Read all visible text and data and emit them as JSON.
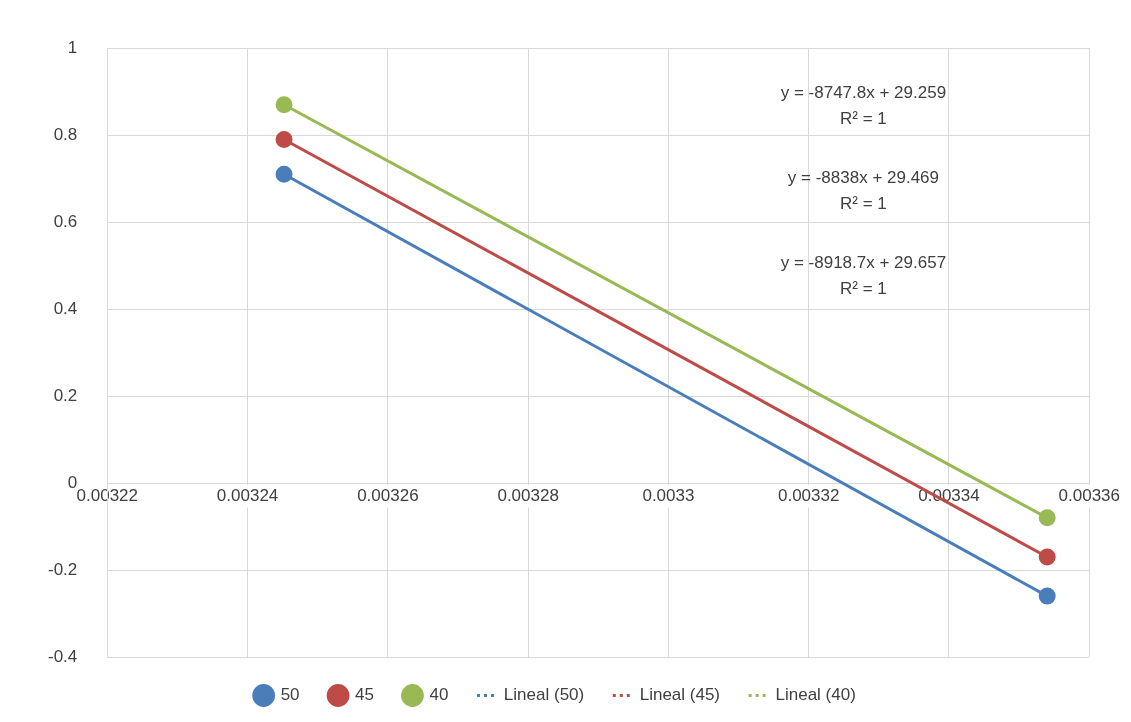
{
  "chart_data": {
    "type": "line",
    "x": [
      0.0032452,
      0.003354
    ],
    "series": [
      {
        "name": "50",
        "color": "#4a7ebb",
        "values": [
          0.71,
          -0.26
        ],
        "marker": "circle",
        "line_style": "solid"
      },
      {
        "name": "45",
        "color": "#be4b48",
        "values": [
          0.79,
          -0.17
        ],
        "marker": "circle",
        "line_style": "solid"
      },
      {
        "name": "40",
        "color": "#98b954",
        "values": [
          0.87,
          -0.08
        ],
        "marker": "circle",
        "line_style": "solid"
      },
      {
        "name": "Lineal (50)",
        "color": "#4a7ebb",
        "values": [
          null,
          null
        ],
        "marker": "none",
        "line_style": "dotted"
      },
      {
        "name": "Lineal (45)",
        "color": "#be4b48",
        "values": [
          null,
          null
        ],
        "marker": "none",
        "line_style": "dotted"
      },
      {
        "name": "Lineal (40)",
        "color": "#98b954",
        "values": [
          null,
          null
        ],
        "marker": "none",
        "line_style": "dotted"
      }
    ],
    "xlim": [
      0.00322,
      0.00336
    ],
    "xticks": [
      0.00322,
      0.00324,
      0.00326,
      0.00328,
      0.0033,
      0.00332,
      0.00334,
      0.00336
    ],
    "ylim": [
      -0.4,
      1
    ],
    "yticks": [
      -0.4,
      -0.2,
      0,
      0.2,
      0.4,
      0.6,
      0.8,
      1
    ],
    "grid": true,
    "legend": "bottom",
    "annotations": [
      "y = -8747.8x + 29.259",
      "R² = 1",
      "y = -8838x + 29.469",
      "R² = 1",
      "y = -8918.7x + 29.657",
      "R² = 1"
    ]
  }
}
